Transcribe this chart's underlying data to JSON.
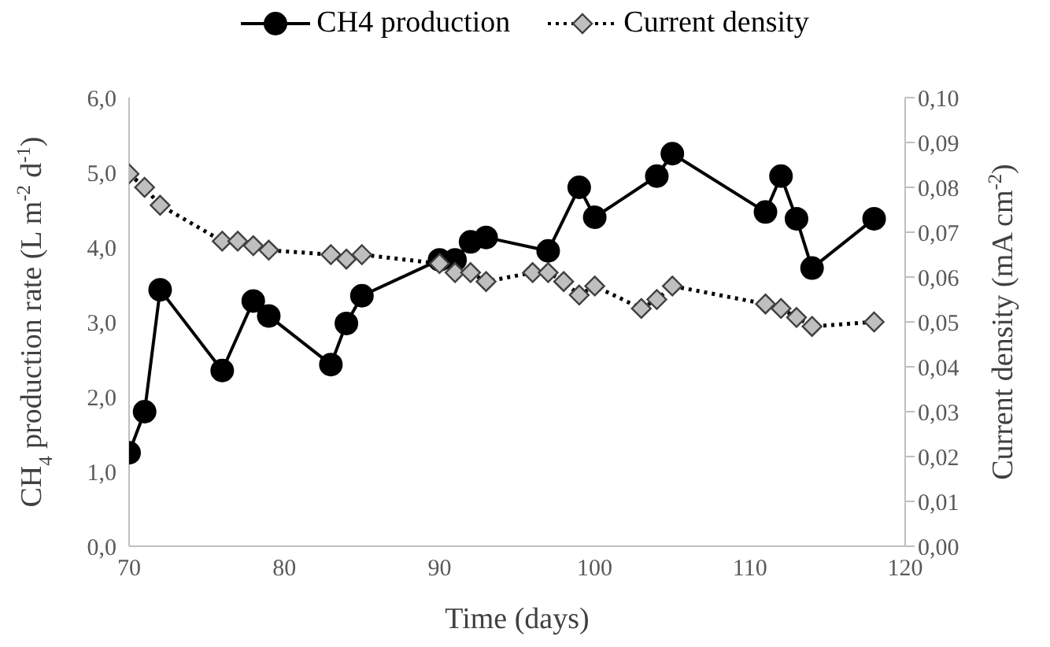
{
  "chart_data": {
    "type": "line",
    "xlabel": "Time (days)",
    "ylabel": "CH$_{4}$ production rate (L m$^{-2}$ d$^{-1}$)",
    "y2label": "Current density (mA cm$^{-2}$)",
    "legend": "top",
    "grid": false,
    "xlim": [
      70,
      120
    ],
    "xticks": [
      70,
      80,
      90,
      100,
      110,
      120
    ],
    "ylim": [
      0,
      6
    ],
    "yticks": [
      {
        "value": 0,
        "label": "0,0"
      },
      {
        "value": 1,
        "label": "1,0"
      },
      {
        "value": 2,
        "label": "2,0"
      },
      {
        "value": 3,
        "label": "3,0"
      },
      {
        "value": 4,
        "label": "4,0"
      },
      {
        "value": 5,
        "label": "5,0"
      },
      {
        "value": 6,
        "label": "6,0"
      }
    ],
    "y2lim": [
      0,
      0.1
    ],
    "y2ticks": [
      {
        "value": 0,
        "label": "0,00"
      },
      {
        "value": 0.01,
        "label": "0,01"
      },
      {
        "value": 0.02,
        "label": "0,02"
      },
      {
        "value": 0.03,
        "label": "0,03"
      },
      {
        "value": 0.04,
        "label": "0,04"
      },
      {
        "value": 0.05,
        "label": "0,05"
      },
      {
        "value": 0.06,
        "label": "0,06"
      },
      {
        "value": 0.07,
        "label": "0,07"
      },
      {
        "value": 0.08,
        "label": "0,08"
      },
      {
        "value": 0.09,
        "label": "0,09"
      },
      {
        "value": 0.1,
        "label": "0,10"
      }
    ],
    "series": [
      {
        "name": "CH4 production",
        "color": "#000000",
        "marker": "circle",
        "line_style": "solid",
        "x": [
          70,
          71,
          72,
          76,
          78,
          79,
          83,
          84,
          85,
          90,
          91,
          92,
          93,
          97,
          99,
          100,
          104,
          105,
          111,
          112,
          113,
          114,
          118
        ],
        "values": [
          1.25,
          1.8,
          3.43,
          2.35,
          3.28,
          3.08,
          2.43,
          2.98,
          3.35,
          3.83,
          3.83,
          4.07,
          4.13,
          3.95,
          4.8,
          4.4,
          4.95,
          5.25,
          4.47,
          4.95,
          4.38,
          3.72,
          4.38
        ]
      },
      {
        "name": "Current density",
        "color": "#bfbfbf",
        "marker": "diamond",
        "line_style": "dotted",
        "axis": "y2",
        "x": [
          70,
          71,
          72,
          76,
          77,
          78,
          79,
          83,
          84,
          85,
          90,
          91,
          92,
          93,
          96,
          97,
          98,
          99,
          100,
          103,
          104,
          105,
          111,
          112,
          113,
          114,
          118
        ],
        "values": [
          0.083,
          0.08,
          0.076,
          0.068,
          0.068,
          0.067,
          0.066,
          0.065,
          0.064,
          0.065,
          0.063,
          0.061,
          0.061,
          0.059,
          0.061,
          0.061,
          0.059,
          0.056,
          0.058,
          0.053,
          0.055,
          0.058,
          0.054,
          0.053,
          0.051,
          0.049,
          0.05
        ]
      }
    ]
  }
}
